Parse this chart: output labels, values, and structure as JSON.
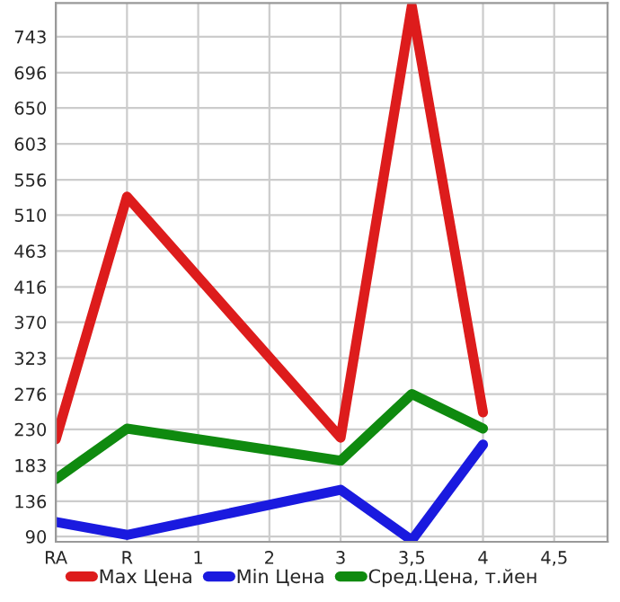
{
  "chart_data": {
    "type": "line",
    "categories": [
      "RA",
      "R",
      "1",
      "2",
      "3",
      "3,5",
      "4",
      "4,5"
    ],
    "series": [
      {
        "name": "Max Цена",
        "color": "#dd1c1c",
        "values": [
          217,
          534,
          null,
          null,
          219,
          783,
          252,
          null
        ]
      },
      {
        "name": "Min Цена",
        "color": "#1a1adf",
        "values": [
          109,
          92,
          null,
          null,
          151,
          85,
          210,
          null
        ]
      },
      {
        "name": "Сред.Цена, т.йен",
        "color": "#0f8a0f",
        "values": [
          165,
          231,
          null,
          null,
          189,
          276,
          231,
          null
        ]
      }
    ],
    "ylim": [
      83,
      787
    ],
    "yticks": [
      90,
      136,
      183,
      230,
      276,
      323,
      370,
      416,
      463,
      510,
      556,
      603,
      650,
      696,
      743
    ],
    "grid": true,
    "legend": "bottom",
    "marker": "none",
    "line_style": "solid"
  }
}
